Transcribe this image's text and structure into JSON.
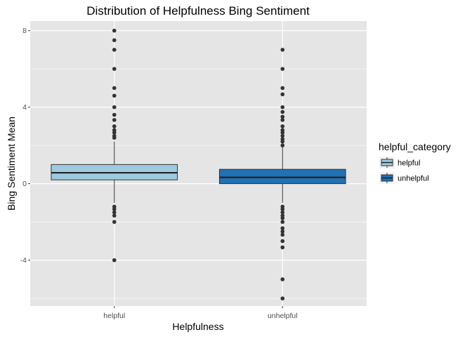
{
  "chart_data": {
    "type": "boxplot",
    "title": "Distribution of Helpfulness Bing Sentiment",
    "xlabel": "Helpfulness",
    "ylabel": "Bing Sentiment Mean",
    "categories": [
      "helpful",
      "unhelpful"
    ],
    "ylim": [
      -6.4,
      8.5
    ],
    "yticks": [
      -4,
      0,
      4,
      8
    ],
    "ytick_labels": [
      "-4",
      "0",
      "4",
      "8"
    ],
    "grid": true,
    "legend": {
      "title": "helpful_category",
      "position": "right",
      "entries": [
        "helpful",
        "unhelpful"
      ]
    },
    "colors": {
      "helpful": "#9ecae1",
      "unhelpful": "#2171b5",
      "panel": "#e5e5e5",
      "grid": "#ffffff"
    },
    "series": [
      {
        "category": "helpful",
        "whisker_low": -1.0,
        "q1": 0.2,
        "median": 0.57,
        "q3": 1.0,
        "whisker_high": 2.2,
        "outliers": [
          8.0,
          7.5,
          7.0,
          6.0,
          5.0,
          4.6,
          4.0,
          3.6,
          3.33,
          3.0,
          2.8,
          2.67,
          2.5,
          2.4,
          -1.2,
          -1.33,
          -1.5,
          -1.67,
          -2.0,
          -4.0
        ]
      },
      {
        "category": "unhelpful",
        "whisker_low": -1.0,
        "q1": 0.0,
        "median": 0.33,
        "q3": 0.75,
        "whisker_high": 1.9,
        "outliers": [
          7.0,
          6.0,
          5.0,
          4.67,
          4.0,
          3.75,
          3.5,
          3.33,
          3.0,
          2.8,
          2.67,
          2.5,
          2.33,
          2.2,
          2.0,
          -1.2,
          -1.33,
          -1.5,
          -1.67,
          -1.8,
          -2.0,
          -2.33,
          -2.5,
          -2.67,
          -3.0,
          -3.33,
          -5.0,
          -6.0
        ]
      }
    ]
  }
}
